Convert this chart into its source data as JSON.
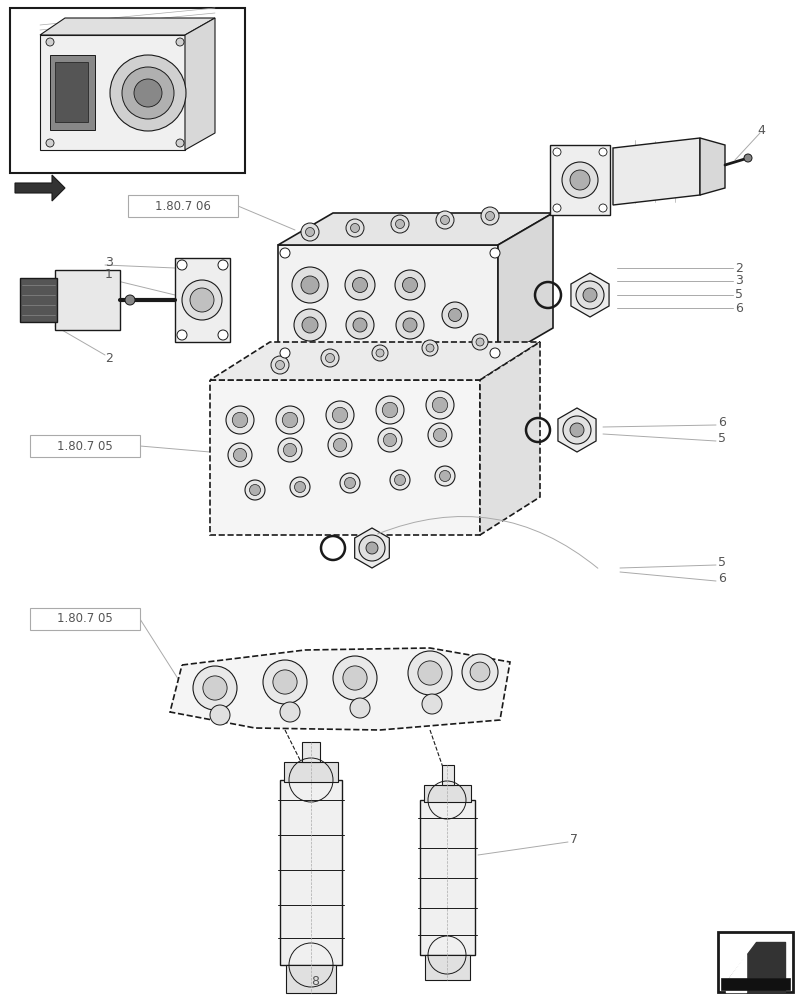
{
  "bg_color": "#ffffff",
  "lc": "#1a1a1a",
  "gray": "#888888",
  "lgray": "#aaaaaa",
  "dgray": "#555555",
  "fig_w": 8.12,
  "fig_h": 10.0,
  "dpi": 100
}
